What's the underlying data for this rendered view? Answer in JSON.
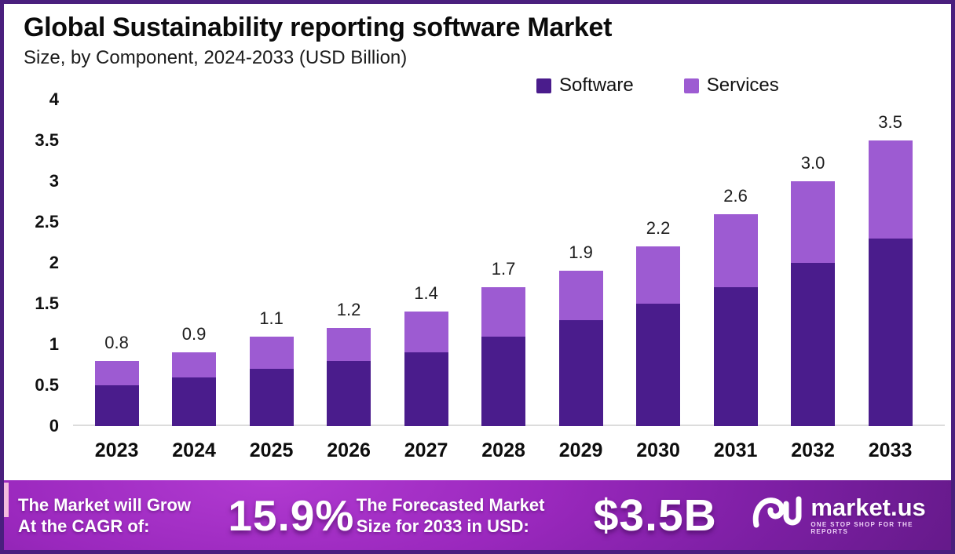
{
  "header": {
    "title": "Global Sustainability reporting software Market",
    "subtitle": "Size, by Component, 2024-2033 (USD Billion)"
  },
  "legend": {
    "items": [
      {
        "label": "Software",
        "color": "#4a1c8c"
      },
      {
        "label": "Services",
        "color": "#9d5bd2"
      }
    ]
  },
  "chart_data": {
    "type": "bar",
    "stacked": true,
    "title": "Global Sustainability reporting software Market",
    "subtitle": "Size, by Component, 2024-2033 (USD Billion)",
    "xlabel": "",
    "ylabel": "USD Billion",
    "categories": [
      "2023",
      "2024",
      "2025",
      "2026",
      "2027",
      "2028",
      "2029",
      "2030",
      "2031",
      "2032",
      "2033"
    ],
    "series": [
      {
        "name": "Software",
        "color": "#4a1c8c",
        "values": [
          0.5,
          0.6,
          0.7,
          0.8,
          0.9,
          1.1,
          1.3,
          1.5,
          1.7,
          2.0,
          2.3
        ]
      },
      {
        "name": "Services",
        "color": "#9d5bd2",
        "values": [
          0.3,
          0.3,
          0.4,
          0.4,
          0.5,
          0.6,
          0.6,
          0.7,
          0.9,
          1.0,
          1.2
        ]
      }
    ],
    "totals": [
      0.8,
      0.9,
      1.1,
      1.2,
      1.4,
      1.7,
      1.9,
      2.2,
      2.6,
      3.0,
      3.5
    ],
    "total_labels": [
      "0.8",
      "0.9",
      "1.1",
      "1.2",
      "1.4",
      "1.7",
      "1.9",
      "2.2",
      "2.6",
      "3.0",
      "3.5"
    ],
    "y_ticks": [
      "4",
      "3.5",
      "3",
      "2.5",
      "2",
      "1.5",
      "1",
      "0.5",
      "0"
    ],
    "ylim": [
      0,
      4
    ],
    "grid": false,
    "legend_position": "top-right"
  },
  "banner": {
    "cagr_label_line1": "The Market will Grow",
    "cagr_label_line2": "At the CAGR of:",
    "cagr_value": "15.9%",
    "forecast_label_line1": "The Forecasted Market",
    "forecast_label_line2": "Size for 2033 in USD:",
    "forecast_value": "$3.5B",
    "brand": {
      "name": "market.us",
      "tagline": "ONE STOP SHOP FOR THE REPORTS"
    }
  },
  "colors": {
    "frame_border": "#4a1f7e",
    "software": "#4a1c8c",
    "services": "#9d5bd2",
    "banner_accent": "#f3bcdf"
  }
}
